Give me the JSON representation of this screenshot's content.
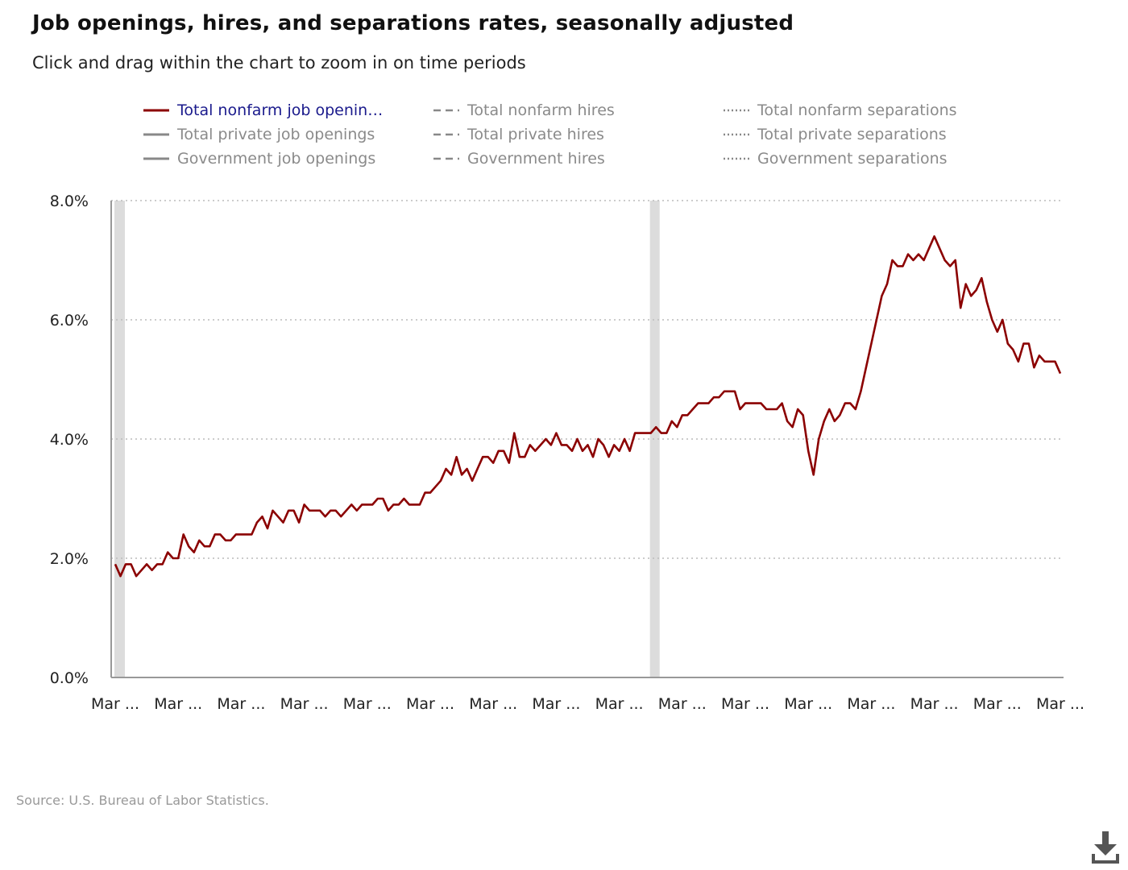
{
  "header": {
    "title": "Job openings, hires, and separations rates, seasonally adjusted",
    "subtitle": "Click and drag within the chart to zoom in on time periods"
  },
  "legend": {
    "items": [
      {
        "label": "Total nonfarm job openin…",
        "style": "solid",
        "active": true,
        "color": "#8b0000"
      },
      {
        "label": "Total private job openings",
        "style": "solid",
        "active": false,
        "color": "#888888"
      },
      {
        "label": "Government job openings",
        "style": "solid",
        "active": false,
        "color": "#888888"
      },
      {
        "label": "Total nonfarm hires",
        "style": "dashed",
        "active": false,
        "color": "#888888"
      },
      {
        "label": "Total private hires",
        "style": "dashed",
        "active": false,
        "color": "#888888"
      },
      {
        "label": "Government hires",
        "style": "dashed",
        "active": false,
        "color": "#888888"
      },
      {
        "label": "Total nonfarm separations",
        "style": "dotted",
        "active": false,
        "color": "#888888"
      },
      {
        "label": "Total private separations",
        "style": "dotted",
        "active": false,
        "color": "#888888"
      },
      {
        "label": "Government separations",
        "style": "dotted",
        "active": false,
        "color": "#888888"
      }
    ]
  },
  "source": "Source: U.S. Bureau of Labor Statistics.",
  "download_icon": "download-icon",
  "chart_data": {
    "type": "line",
    "title": "Job openings, hires, and separations rates, seasonally adjusted",
    "xlabel": "",
    "ylabel": "",
    "ylim": [
      0,
      8
    ],
    "yticks": [
      "0.0%",
      "2.0%",
      "4.0%",
      "6.0%",
      "8.0%"
    ],
    "ytick_values": [
      0,
      2,
      4,
      6,
      8
    ],
    "xtick_labels": [
      "Mar ...",
      "Mar ...",
      "Mar ...",
      "Mar ...",
      "Mar ...",
      "Mar ...",
      "Mar ...",
      "Mar ...",
      "Mar ...",
      "Mar ...",
      "Mar ...",
      "Mar ...",
      "Mar ...",
      "Mar ...",
      "Mar ...",
      "Mar ..."
    ],
    "grid": "horizontal dotted",
    "recession_bands": [
      [
        0,
        2
      ],
      [
        102,
        103
      ]
    ],
    "line_color": "#8b0000",
    "series": [
      {
        "name": "Total nonfarm job openin…",
        "values": [
          1.9,
          1.7,
          1.9,
          1.9,
          1.7,
          1.8,
          1.9,
          1.8,
          1.9,
          1.9,
          2.1,
          2.0,
          2.0,
          2.4,
          2.2,
          2.1,
          2.3,
          2.2,
          2.2,
          2.4,
          2.4,
          2.3,
          2.3,
          2.4,
          2.4,
          2.4,
          2.4,
          2.6,
          2.7,
          2.5,
          2.8,
          2.7,
          2.6,
          2.8,
          2.8,
          2.6,
          2.9,
          2.8,
          2.8,
          2.8,
          2.7,
          2.8,
          2.8,
          2.7,
          2.8,
          2.9,
          2.8,
          2.9,
          2.9,
          2.9,
          3.0,
          3.0,
          2.8,
          2.9,
          2.9,
          3.0,
          2.9,
          2.9,
          2.9,
          3.1,
          3.1,
          3.2,
          3.3,
          3.5,
          3.4,
          3.7,
          3.4,
          3.5,
          3.3,
          3.5,
          3.7,
          3.7,
          3.6,
          3.8,
          3.8,
          3.6,
          4.1,
          3.7,
          3.7,
          3.9,
          3.8,
          3.9,
          4.0,
          3.9,
          4.1,
          3.9,
          3.9,
          3.8,
          4.0,
          3.8,
          3.9,
          3.7,
          4.0,
          3.9,
          3.7,
          3.9,
          3.8,
          4.0,
          3.8,
          4.1,
          4.1,
          4.1,
          4.1,
          4.2,
          4.1,
          4.1,
          4.3,
          4.2,
          4.4,
          4.4,
          4.5,
          4.6,
          4.6,
          4.6,
          4.7,
          4.7,
          4.8,
          4.8,
          4.8,
          4.5,
          4.6,
          4.6,
          4.6,
          4.6,
          4.5,
          4.5,
          4.5,
          4.6,
          4.3,
          4.2,
          4.5,
          4.4,
          3.8,
          3.4,
          4.0,
          4.3,
          4.5,
          4.3,
          4.4,
          4.6,
          4.6,
          4.5,
          4.8,
          5.2,
          5.6,
          6.0,
          6.4,
          6.6,
          7.0,
          6.9,
          6.9,
          7.1,
          7.0,
          7.1,
          7.0,
          7.2,
          7.4,
          7.2,
          7.0,
          6.9,
          7.0,
          6.2,
          6.6,
          6.4,
          6.5,
          6.7,
          6.3,
          6.0,
          5.8,
          6.0,
          5.6,
          5.5,
          5.3,
          5.6,
          5.6,
          5.2,
          5.4,
          5.3,
          5.3,
          5.3,
          5.1
        ]
      }
    ]
  }
}
